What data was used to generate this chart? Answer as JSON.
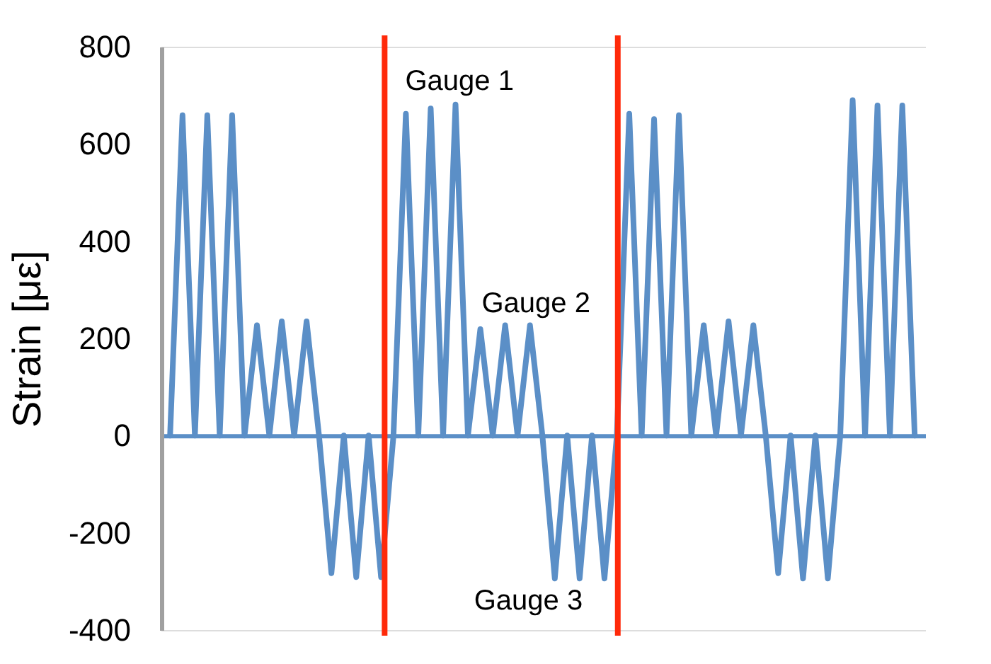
{
  "chart_data": {
    "type": "line",
    "ylabel": "Strain [με]",
    "categories": [
      null,
      null,
      null,
      null,
      null,
      null,
      null,
      null,
      null,
      null,
      null,
      null,
      null,
      null,
      null,
      null,
      null,
      null,
      null,
      null,
      null,
      null,
      null,
      null,
      null,
      null,
      null,
      null,
      null,
      null,
      null,
      null,
      null,
      null,
      null,
      null,
      null,
      null,
      null,
      null,
      null,
      null,
      null,
      null,
      null,
      null,
      null,
      null,
      null,
      null,
      null,
      null,
      null,
      null,
      null,
      null,
      null,
      null,
      null,
      null,
      null
    ],
    "series": [
      {
        "color": "#5b8fc7",
        "values": [
          0,
          659,
          0,
          659,
          0,
          659,
          0,
          227,
          0,
          235,
          0,
          235,
          0,
          -283,
          0,
          -291,
          0,
          -291,
          0,
          662,
          0,
          673,
          0,
          681,
          0,
          219,
          0,
          227,
          0,
          227,
          0,
          -294,
          0,
          -294,
          0,
          -294,
          0,
          662,
          0,
          651,
          0,
          659,
          0,
          227,
          0,
          235,
          0,
          227,
          0,
          -283,
          0,
          -294,
          0,
          -294,
          0,
          690,
          0,
          679,
          0,
          679,
          0
        ]
      }
    ],
    "ylim": [
      -400,
      800
    ],
    "yticks": [
      -400,
      -200,
      0,
      200,
      400,
      600,
      800
    ],
    "tick_labels": "y",
    "grid": false,
    "marker": "none",
    "line_style": "solid",
    "ref_lines": [
      {
        "axis": "y",
        "value": 0,
        "color": "#5b8fc7"
      }
    ],
    "annotations": [
      "Gauge 1",
      "Gauge 2",
      "Gauge 3"
    ]
  }
}
